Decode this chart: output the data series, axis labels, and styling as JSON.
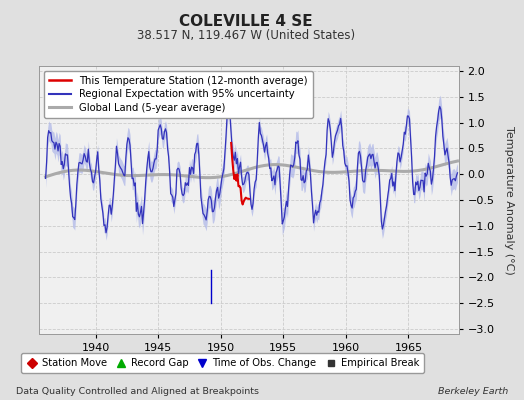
{
  "title": "COLEVILLE 4 SE",
  "subtitle": "38.517 N, 119.467 W (United States)",
  "ylabel": "Temperature Anomaly (°C)",
  "xlabel_note": "Data Quality Controlled and Aligned at Breakpoints",
  "xlabel_right": "Berkeley Earth",
  "ylim": [
    -3.1,
    2.1
  ],
  "xlim": [
    1935.5,
    1969.0
  ],
  "xticks": [
    1940,
    1945,
    1950,
    1955,
    1960,
    1965
  ],
  "yticks": [
    -3,
    -2.5,
    -2,
    -1.5,
    -1,
    -0.5,
    0,
    0.5,
    1,
    1.5,
    2
  ],
  "regional_color": "#3333bb",
  "regional_fill_color": "#b0b8e8",
  "station_color": "#dd0000",
  "global_color": "#aaaaaa",
  "background_color": "#e0e0e0",
  "plot_bg_color": "#f0f0f0",
  "legend_items": [
    {
      "label": "This Temperature Station (12-month average)",
      "color": "#dd0000",
      "lw": 1.5
    },
    {
      "label": "Regional Expectation with 95% uncertainty",
      "color": "#3333bb",
      "lw": 1.5
    },
    {
      "label": "Global Land (5-year average)",
      "color": "#aaaaaa",
      "lw": 2.5
    }
  ],
  "marker_items": [
    {
      "label": "Station Move",
      "marker": "D",
      "color": "#cc0000"
    },
    {
      "label": "Record Gap",
      "marker": "^",
      "color": "#00aa00"
    },
    {
      "label": "Time of Obs. Change",
      "marker": "v",
      "color": "#0000cc"
    },
    {
      "label": "Empirical Break",
      "marker": "s",
      "color": "#333333"
    }
  ],
  "obs_change_x": 1949.25,
  "obs_change_y_top": -1.85,
  "obs_change_y_bot": -2.5,
  "station_x_start": 1950.8,
  "station_x_end": 1952.3
}
